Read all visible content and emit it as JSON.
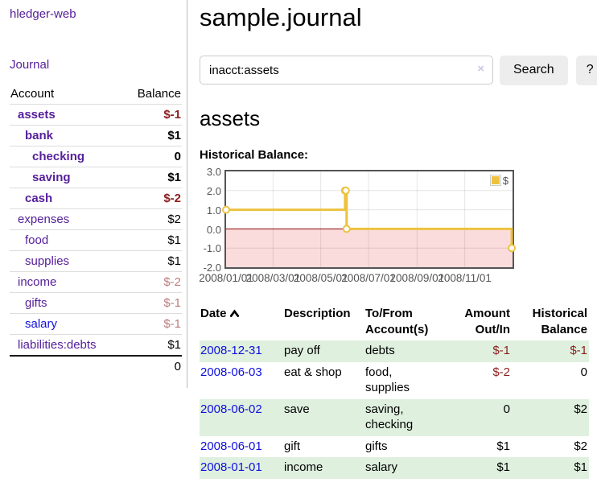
{
  "app": {
    "brand": "hledger-web",
    "nav_journal": "Journal"
  },
  "sidebar": {
    "header": {
      "account": "Account",
      "balance": "Balance"
    },
    "accounts": [
      {
        "name": "assets",
        "balance": "$-1",
        "depth": 0,
        "bold": true,
        "balance_style": "negative",
        "link_color": "purple"
      },
      {
        "name": "bank",
        "balance": "$1",
        "depth": 1,
        "bold": true,
        "balance_style": "normal",
        "link_color": "purple"
      },
      {
        "name": "checking",
        "balance": "0",
        "depth": 2,
        "bold": true,
        "balance_style": "normal",
        "link_color": "purple"
      },
      {
        "name": "saving",
        "balance": "$1",
        "depth": 2,
        "bold": true,
        "balance_style": "normal",
        "link_color": "purple"
      },
      {
        "name": "cash",
        "balance": "$-2",
        "depth": 1,
        "bold": true,
        "balance_style": "negative",
        "link_color": "purple"
      },
      {
        "name": "expenses",
        "balance": "$2",
        "depth": 0,
        "bold": false,
        "balance_style": "normal",
        "link_color": "purple"
      },
      {
        "name": "food",
        "balance": "$1",
        "depth": 1,
        "bold": false,
        "balance_style": "normal",
        "link_color": "purple"
      },
      {
        "name": "supplies",
        "balance": "$1",
        "depth": 1,
        "bold": false,
        "balance_style": "normal",
        "link_color": "purple"
      },
      {
        "name": "income",
        "balance": "$-2",
        "depth": 0,
        "bold": false,
        "balance_style": "negative-light",
        "link_color": "purple"
      },
      {
        "name": "gifts",
        "balance": "$-1",
        "depth": 1,
        "bold": false,
        "balance_style": "negative-light",
        "link_color": "purple"
      },
      {
        "name": "salary",
        "balance": "$-1",
        "depth": 1,
        "bold": false,
        "balance_style": "negative-light",
        "link_color": "blue"
      },
      {
        "name": "liabilities:debts",
        "balance": "$1",
        "depth": 0,
        "bold": false,
        "balance_style": "normal",
        "link_color": "purple"
      }
    ],
    "total": "0"
  },
  "main": {
    "title": "sample.journal",
    "search": {
      "value": "inacct:assets",
      "clear_label": "×",
      "button_label": "Search",
      "help_label": "?"
    },
    "account_heading": "assets",
    "chart_heading": "Historical Balance:"
  },
  "chart_data": {
    "type": "line",
    "title": "Historical Balance:",
    "step": true,
    "series": [
      {
        "name": "$",
        "color": "#EDC240",
        "points": [
          [
            "2008-01-01",
            1
          ],
          [
            "2008-06-01",
            2
          ],
          [
            "2008-06-02",
            2
          ],
          [
            "2008-06-03",
            0
          ],
          [
            "2008-12-31",
            -1
          ]
        ]
      }
    ],
    "x_ticks": [
      "2008/01/01",
      "2008/03/01",
      "2008/05/01",
      "2008/07/01",
      "2008/09/01",
      "2008/11/01"
    ],
    "y_ticks": [
      3,
      2,
      1,
      0,
      -1,
      -2
    ],
    "xlim": [
      "2008-01-01",
      "2009-01-01"
    ],
    "ylim": [
      -2,
      3
    ],
    "legend": {
      "label": "$",
      "position": "top-right"
    },
    "grid": true,
    "zero_line_color": "#8b0000",
    "negative_region_fill": "#fbdcdc",
    "border_color": "#545454"
  },
  "register_table": {
    "headers": [
      "Date",
      "Description",
      "To/From Account(s)",
      "Amount Out/In",
      "Historical Balance"
    ],
    "sort": {
      "column": "Date",
      "direction": "asc"
    },
    "rows": [
      {
        "date": "2008-12-31",
        "description": "pay off",
        "accounts": "debts",
        "amount": "$-1",
        "balance": "$-1"
      },
      {
        "date": "2008-06-03",
        "description": "eat & shop",
        "accounts": "food, supplies",
        "amount": "$-2",
        "balance": "0"
      },
      {
        "date": "2008-06-02",
        "description": "save",
        "accounts": "saving, checking",
        "amount": "0",
        "balance": "$2"
      },
      {
        "date": "2008-06-01",
        "description": "gift",
        "accounts": "gifts",
        "amount": "$1",
        "balance": "$2"
      },
      {
        "date": "2008-01-01",
        "description": "income",
        "accounts": "salary",
        "amount": "$1",
        "balance": "$1"
      }
    ]
  },
  "colors": {
    "link_purple": "#56209b",
    "link_blue": "#1010dd",
    "negative": "#8b1d1d",
    "negative_light": "#bb7c7c",
    "row_stripe_green": "#dff0df",
    "chart_line": "#EDC240",
    "chart_negative_region": "#fbdcdc",
    "zero_line": "#8b0000",
    "button_bg": "#ededed"
  }
}
